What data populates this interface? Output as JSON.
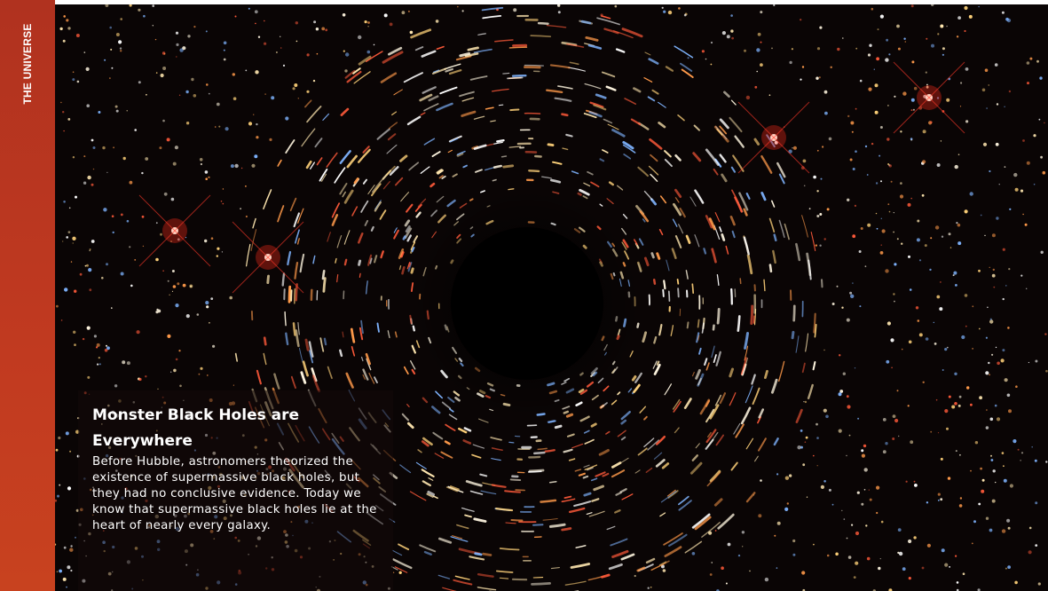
{
  "sidebar": {
    "label": "THE UNIVERSE"
  },
  "caption": {
    "title": "Monster Black Holes are Everywhere",
    "body": "Before Hubble, astronomers theorized the existence of supermassive black holes, but they had no conclusive evidence. Today we know that supermassive black holes lie at the heart of nearly every galaxy."
  }
}
